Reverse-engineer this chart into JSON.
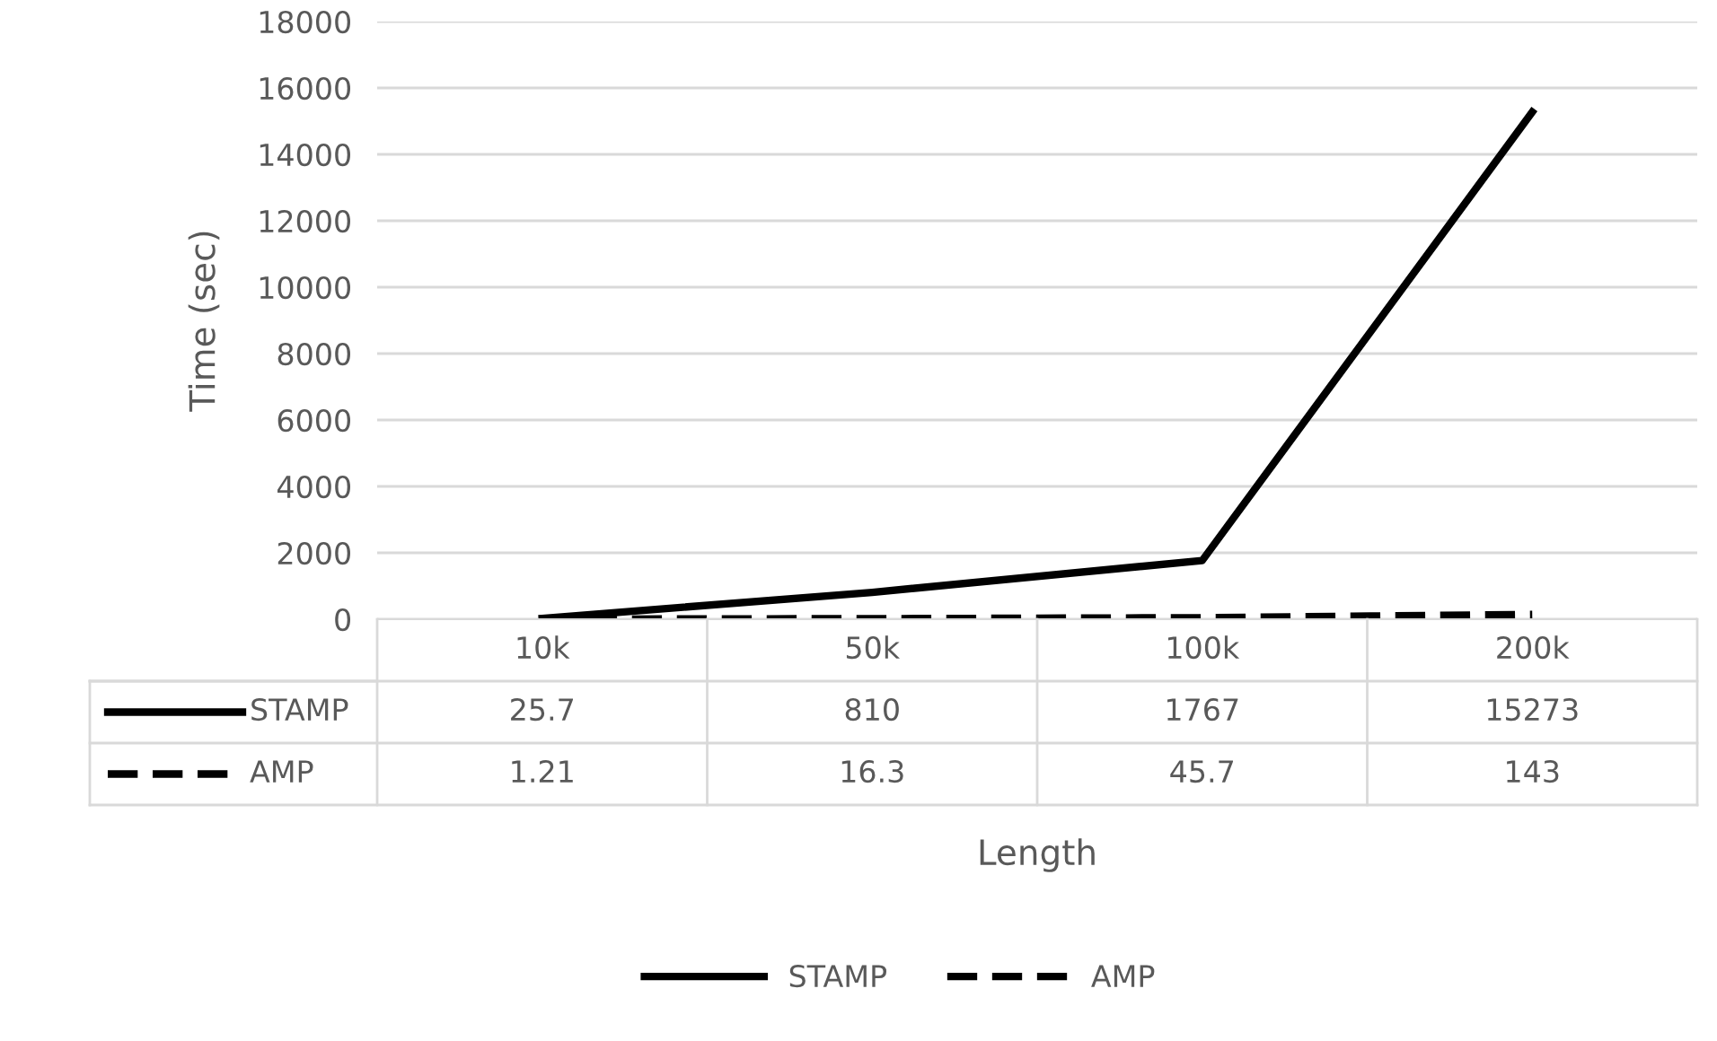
{
  "chart_data": {
    "type": "line",
    "annotations": [
      "Length"
    ],
    "ylabel": "Time (sec)",
    "categories": [
      "10k",
      "50k",
      "100k",
      "200k"
    ],
    "series": [
      {
        "name": "STAMP",
        "color": "#000000",
        "line_style": "solid",
        "values": [
          25.7,
          810,
          1767,
          15273
        ]
      },
      {
        "name": "AMP",
        "color": "#000000",
        "line_style": "dashed",
        "values": [
          1.21,
          16.3,
          45.7,
          143
        ]
      }
    ],
    "ylim": [
      0,
      18000
    ],
    "yticks": [
      0,
      2000,
      4000,
      6000,
      8000,
      10000,
      12000,
      14000,
      16000,
      18000
    ],
    "grid": "y",
    "legend": "bottom",
    "data_labels": true,
    "marker": "none"
  }
}
